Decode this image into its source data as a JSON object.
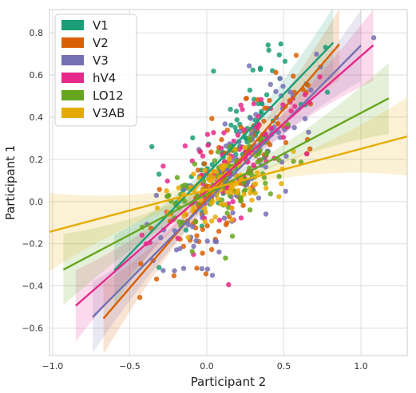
{
  "chart_data": {
    "type": "scatter",
    "title": "",
    "xlabel": "Participant 2",
    "ylabel": "Participant 1",
    "xlim": [
      -1.02,
      1.3
    ],
    "ylim": [
      -0.73,
      0.91
    ],
    "xticks": [
      -1.0,
      -0.5,
      0.0,
      0.5,
      1.0
    ],
    "xtick_labels": [
      "−1.0",
      "−0.5",
      "0.0",
      "0.5",
      "1.0"
    ],
    "yticks": [
      -0.6,
      -0.4,
      -0.2,
      0.0,
      0.2,
      0.4,
      0.6,
      0.8
    ],
    "ytick_labels": [
      "−0.6",
      "−0.4",
      "−0.2",
      "0.0",
      "0.2",
      "0.4",
      "0.6",
      "0.8"
    ],
    "grid": true,
    "legend_position": "top-left",
    "series": [
      {
        "name": "V1",
        "color": "#1b9e77",
        "fit": {
          "x": [
            -0.6,
            0.82
          ],
          "slope": 0.76,
          "intercept": 0.13
        },
        "center": [
          0.18,
          0.18
        ],
        "spread": [
          0.26,
          0.25
        ],
        "n": 110
      },
      {
        "name": "V2",
        "color": "#d95f02",
        "fit": {
          "x": [
            -0.67,
            0.86
          ],
          "slope": 0.85,
          "intercept": 0.015
        },
        "center": [
          0.18,
          0.15
        ],
        "spread": [
          0.27,
          0.26
        ],
        "n": 110
      },
      {
        "name": "V3",
        "color": "#7570b3",
        "fit": {
          "x": [
            -0.74,
            1.0
          ],
          "slope": 0.74,
          "intercept": 0.0
        },
        "center": [
          0.2,
          0.15
        ],
        "spread": [
          0.28,
          0.26
        ],
        "n": 110
      },
      {
        "name": "hV4",
        "color": "#e7298a",
        "fit": {
          "x": [
            -0.85,
            1.08
          ],
          "slope": 0.64,
          "intercept": 0.05
        },
        "center": [
          0.2,
          0.14
        ],
        "spread": [
          0.26,
          0.24
        ],
        "n": 100
      },
      {
        "name": "LO12",
        "color": "#66a61e",
        "fit": {
          "x": [
            -0.93,
            1.18
          ],
          "slope": 0.385,
          "intercept": 0.035
        },
        "center": [
          0.12,
          0.06
        ],
        "spread": [
          0.22,
          0.2
        ],
        "n": 100
      },
      {
        "name": "V3AB",
        "color": "#e6ab02",
        "fit": {
          "x": [
            -1.02,
            1.3
          ],
          "slope": 0.195,
          "intercept": 0.055
        },
        "center": [
          0.1,
          0.06
        ],
        "spread": [
          0.17,
          0.14
        ],
        "n": 90
      }
    ]
  }
}
